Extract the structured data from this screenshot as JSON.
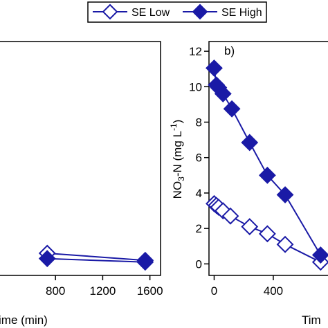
{
  "colors": {
    "series": "#1a1aa6",
    "axis": "#000000",
    "background": "#ffffff"
  },
  "legend": {
    "placement": "top-center",
    "items": [
      {
        "label": "SE Low",
        "marker": "diamond-open"
      },
      {
        "label": "SE High",
        "marker": "diamond-filled"
      }
    ]
  },
  "chart_data": [
    {
      "panel": "a",
      "type": "scatter",
      "partially_visible": true,
      "xlabel": "ime (min)",
      "ylabel": "",
      "xlim": [
        330,
        1690
      ],
      "ylim": [
        -0.65,
        12.55
      ],
      "xticks": [
        800,
        1200,
        1600
      ],
      "xtick_labels": [
        "800",
        "1200",
        "1600"
      ],
      "yticks": [],
      "series": [
        {
          "name": "SE Low",
          "marker": "diamond-open",
          "x": [
            730,
            1560
          ],
          "y": [
            0.6,
            0.2
          ]
        },
        {
          "name": "SE High",
          "marker": "diamond-filled",
          "x": [
            730,
            1560
          ],
          "y": [
            0.3,
            0.1
          ]
        }
      ]
    },
    {
      "panel": "b",
      "type": "scatter",
      "partially_visible": true,
      "annotation": "b)",
      "xlabel": "Tim",
      "ylabel": "NO3-N (mg L-1)",
      "xlim": [
        -35,
        770
      ],
      "ylim": [
        -0.65,
        12.55
      ],
      "xticks": [
        0,
        400
      ],
      "xtick_labels": [
        "0",
        "400"
      ],
      "yticks": [
        0,
        2,
        4,
        6,
        8,
        10,
        12
      ],
      "ytick_labels": [
        "0",
        "2",
        "4",
        "6",
        "8",
        "10",
        "12"
      ],
      "series": [
        {
          "name": "SE Low",
          "marker": "diamond-open",
          "x": [
            0,
            15,
            30,
            60,
            110,
            240,
            360,
            480,
            720
          ],
          "y": [
            3.4,
            3.3,
            3.2,
            3.0,
            2.7,
            2.1,
            1.7,
            1.1,
            0.1
          ]
        },
        {
          "name": "SE High",
          "marker": "diamond-filled",
          "x": [
            0,
            15,
            30,
            60,
            120,
            240,
            360,
            480,
            720
          ],
          "y": [
            11.05,
            10.1,
            9.95,
            9.6,
            8.75,
            6.85,
            5.0,
            3.9,
            0.5
          ]
        }
      ]
    }
  ]
}
